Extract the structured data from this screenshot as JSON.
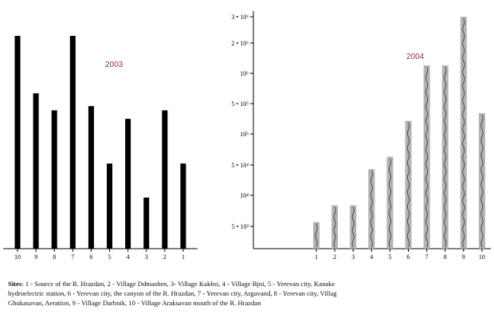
{
  "chart_data": [
    {
      "type": "bar",
      "year_label": "2003",
      "categories": [
        "10",
        "9",
        "8",
        "7",
        "6",
        "5",
        "4",
        "3",
        "2",
        "1"
      ],
      "values": [
        100,
        73,
        65,
        100,
        67,
        40,
        61,
        24,
        65,
        40
      ],
      "ylim": [
        0,
        100
      ],
      "color": "#000000"
    },
    {
      "type": "bar",
      "year_label": "2004",
      "categories": [
        "1",
        "2",
        "3",
        "4",
        "5",
        "6",
        "7",
        "8",
        "9",
        "10"
      ],
      "y_scale": "log",
      "y_ticks": [
        "5 • 10³",
        "10⁴",
        "5 • 10⁴",
        "10⁵",
        "5 • 10⁵",
        "10⁶",
        "2 • 10⁶",
        "3 • 10⁶"
      ],
      "y_tick_values": [
        5000,
        10000,
        50000,
        100000,
        500000,
        1000000,
        2000000,
        3000000
      ],
      "values": [
        5500,
        8000,
        8000,
        40000,
        60000,
        200000,
        1200000,
        1200000,
        3000000,
        300000
      ],
      "color": "#b3b3b3"
    }
  ],
  "sites": {
    "heading": "Sites",
    "line1": ": 1 - Source of the R. Hrazdan,   2 - Village Ddmashen,   3- Village Kakhsi, 4 - Village Bjni,   5  - Yerevan city, Kanake",
    "line2": "hydroelectric station, 6 - Yerevan city, the canyon of the R. Hrazdan, 7 - Yerevan city,  Argavand, 8 - Yerevan city, Villag",
    "line3": "Ghukasavan, Aeration,    9 - Village Darbnik, 10 - Village Araksavan mouth of the R. Hrazdan"
  }
}
